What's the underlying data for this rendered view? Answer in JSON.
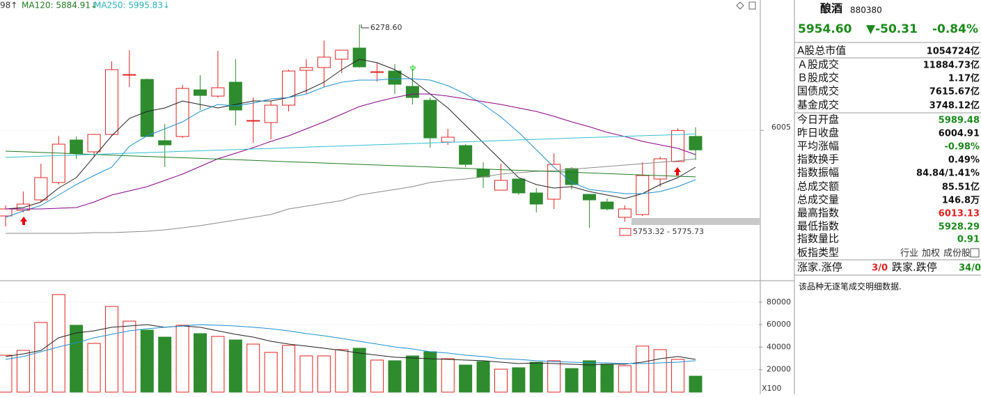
{
  "chart_data": [
    {
      "type": "candlestick",
      "header": [
        "98↑",
        "MA120: 5884.91↓",
        "MA250: 5995.83↓"
      ],
      "up_color": "#e02020",
      "down_color": "#2e8b2e",
      "open": [
        5784,
        5798.4,
        5825.4,
        5870.4,
        5980.2,
        5949.6,
        5994.6,
        6149.4,
        6136.8,
        5978.4,
        5989.2,
        6109.8,
        6093.6,
        6129.6,
        6030.6,
        6025.2,
        6070.2,
        6160.2,
        6167.4,
        6189,
        6217.8,
        6156.6,
        6158.4,
        6118.8,
        6082.8,
        5974.8,
        5965.8,
        5904.6,
        5850.6,
        5879.4,
        5843.4,
        5827.2,
        5906.4,
        5839.8,
        5820,
        5780.4,
        5787.6,
        5879.4,
        5924.4,
        5989.48
      ],
      "high": [
        5811,
        5847,
        5919,
        5991,
        5989.2,
        5994.6,
        6183.6,
        6212.4,
        6138.6,
        6021.6,
        6122.4,
        6147.6,
        6210.6,
        6189,
        6090,
        6081,
        6162,
        6189,
        6237.6,
        6212.4,
        6278.6,
        6180,
        6176.4,
        6162,
        6090,
        6009,
        5969.4,
        5922.6,
        5919,
        5879.4,
        5856,
        5946,
        5910,
        5839.8,
        5829,
        5811,
        5922.6,
        5937,
        6010,
        6013.13
      ],
      "low": [
        5757,
        5793,
        5820,
        5865,
        5931.6,
        5937,
        5991,
        6117,
        5989.2,
        5910,
        5985.6,
        6057.6,
        6090,
        6018,
        5973,
        5982,
        6054,
        6099,
        6117,
        6153,
        6167.4,
        6131.4,
        6099,
        6072,
        5960.4,
        5967.6,
        5910,
        5856,
        5850.6,
        5838,
        5793,
        5802,
        5852.4,
        5753.32,
        5798.4,
        5769.6,
        5784,
        5859.6,
        5924.4,
        5928.29
      ],
      "close": [
        5802,
        5814.6,
        5883,
        5969.4,
        5946,
        5994.6,
        6162,
        6149.4,
        5989.2,
        5967.6,
        6113.4,
        6095.4,
        6115.2,
        6057.6,
        6030.6,
        6070.2,
        6158.4,
        6167.4,
        6194.4,
        6212.4,
        6169.2,
        6156.6,
        6124.2,
        6090,
        5985.6,
        5987.4,
        5917.2,
        5884.8,
        5875.8,
        5843.4,
        5814.6,
        5917.2,
        5865,
        5825.4,
        5802,
        5802,
        5888.4,
        5931.6,
        6004.91,
        5954.6
      ],
      "series": [
        {
          "color": "#222222",
          "values": [
            5802,
            5805.6,
            5820,
            5856,
            5883,
            5937,
            5991,
            6036,
            6054,
            6063,
            6081,
            6072,
            6063,
            6072,
            6081,
            6081,
            6090,
            6108,
            6129.6,
            6162,
            6189,
            6180,
            6162,
            6135,
            6099,
            6063,
            6018,
            5973,
            5928,
            5883,
            5865,
            5856,
            5859.6,
            5847,
            5838,
            5829,
            5841.6,
            5865,
            5883,
            5910
          ]
        },
        {
          "color": "#1e8fd0",
          "values": [
            5780.4,
            5796.6,
            5811,
            5838,
            5865,
            5888.4,
            5910,
            5964,
            5991,
            6009,
            6027,
            6054,
            6072,
            6068.4,
            6075.6,
            6086.4,
            6090,
            6099,
            6117,
            6129.6,
            6135,
            6135,
            6138.6,
            6138.6,
            6135,
            6120.6,
            6099,
            6072,
            6039.6,
            6000,
            5955,
            5910,
            5870.4,
            5852.4,
            5847,
            5841.6,
            5841.6,
            5847,
            5859.6,
            5877.6
          ]
        },
        {
          "color": "#880088",
          "values": [
            5802,
            5802,
            5802,
            5803.8,
            5805.6,
            5820,
            5838,
            5848.8,
            5859.6,
            5875.8,
            5892,
            5911.8,
            5931.6,
            5946,
            5960.4,
            5976.6,
            5991,
            6009,
            6027,
            6046.8,
            6066.6,
            6079.2,
            6090,
            6099,
            6099,
            6093.6,
            6086.4,
            6079.2,
            6072,
            6063,
            6054,
            6041.4,
            6027,
            6014.4,
            6000,
            5989.2,
            5976.6,
            5967.6,
            5958.6,
            5942.4
          ]
        },
        {
          "color": "#8a8a8a",
          "values": [
            5739,
            5739,
            5739,
            5739,
            5739,
            5740.8,
            5740.8,
            5742.6,
            5744.4,
            5748,
            5753.4,
            5758.8,
            5766,
            5773.2,
            5780.4,
            5787.6,
            5802,
            5809.2,
            5816.4,
            5823.6,
            5838,
            5845.2,
            5852.4,
            5859.6,
            5870.4,
            5875.8,
            5879.4,
            5884.8,
            5892,
            5895.6,
            5899.2,
            5901,
            5904.6,
            5908.2,
            5911.8,
            5915.4,
            5919,
            5922.6,
            5926.2,
            5931.6
          ]
        },
        {
          "name": "MA120",
          "color": "#1f7a1f",
          "values": [
            5951.4,
            5949.7,
            5948.0,
            5946.3,
            5944.6,
            5942.9,
            5941.2,
            5939.4,
            5937.7,
            5936.0,
            5934.3,
            5932.6,
            5930.9,
            5929.2,
            5927.5,
            5925.8,
            5924.1,
            5922.4,
            5920.7,
            5919.0,
            5917.2,
            5915.5,
            5913.8,
            5912.1,
            5910.4,
            5908.7,
            5907.0,
            5905.3,
            5903.6,
            5901.9,
            5900.2,
            5898.5,
            5896.7,
            5895.0,
            5893.3,
            5891.6,
            5889.9,
            5888.2,
            5886.5,
            5884.91
          ]
        },
        {
          "name": "MA250",
          "color": "#33bfd0",
          "values": [
            5935.2,
            5936.8,
            5938.3,
            5939.9,
            5941.4,
            5943.0,
            5944.5,
            5946.1,
            5947.6,
            5949.2,
            5950.8,
            5952.3,
            5953.9,
            5955.4,
            5957.0,
            5958.5,
            5960.1,
            5961.6,
            5963.2,
            5964.7,
            5966.3,
            5967.9,
            5969.4,
            5971.0,
            5972.5,
            5974.1,
            5975.6,
            5977.2,
            5978.7,
            5980.3,
            5981.9,
            5983.4,
            5985.0,
            5986.5,
            5988.1,
            5989.6,
            5991.2,
            5992.7,
            5994.3,
            5995.83
          ]
        }
      ],
      "annotations": [
        "6278.60",
        "5753.32 - 5775.73"
      ],
      "ylim": [
        5622,
        6342
      ],
      "yticks": [
        6005
      ],
      "grid": true
    },
    {
      "type": "bar",
      "values": [
        32800,
        37100,
        61900,
        86700,
        59400,
        43300,
        76100,
        63100,
        55100,
        48900,
        59400,
        52000,
        49500,
        46400,
        42700,
        35300,
        41500,
        32200,
        32200,
        37800,
        39000,
        28500,
        27900,
        32200,
        35900,
        29700,
        24100,
        27200,
        20400,
        21700,
        26600,
        27900,
        21000,
        27900,
        24800,
        23500,
        40900,
        37800,
        29100,
        14200
      ],
      "series": [
        {
          "color": "#222222",
          "values": [
            31600,
            34000,
            37100,
            48300,
            52600,
            54500,
            57600,
            58800,
            60000,
            57600,
            58800,
            57600,
            54500,
            51400,
            48900,
            45200,
            42700,
            40900,
            39000,
            37100,
            34700,
            32800,
            31000,
            30300,
            29700,
            29100,
            28500,
            27900,
            26600,
            25400,
            26000,
            25400,
            24800,
            24100,
            24800,
            24800,
            26600,
            29700,
            31600,
            29100
          ]
        },
        {
          "color": "#1e8fd0",
          "values": [
            29100,
            31600,
            35900,
            40200,
            43900,
            48300,
            51400,
            54500,
            56300,
            57600,
            58800,
            60000,
            59400,
            58800,
            57600,
            56300,
            54500,
            52000,
            50100,
            47700,
            45200,
            42700,
            40200,
            38400,
            35900,
            34700,
            32800,
            31600,
            29700,
            29100,
            27900,
            27200,
            26600,
            26000,
            26000,
            25400,
            25400,
            26000,
            26600,
            27900
          ]
        }
      ],
      "unit_label": "X100",
      "ylim": [
        0,
        97800
      ],
      "yticks": [
        20000,
        40000,
        60000,
        80000
      ],
      "grid": true
    }
  ],
  "panel": {
    "name": "酿酒",
    "code": "880380",
    "price": "5954.60",
    "change": "▼-50.31",
    "change_pct": "-0.84%",
    "rows": [
      {
        "label": "A股总市值",
        "value": "1054724亿",
        "color": "#111111"
      },
      {
        "label": "Ａ股成交",
        "value": "11884.73亿",
        "color": "#111111"
      },
      {
        "label": "Ｂ股成交",
        "value": "1.17亿",
        "color": "#111111"
      },
      {
        "label": "国债成交",
        "value": "7615.67亿",
        "color": "#111111"
      },
      {
        "label": "基金成交",
        "value": "3748.12亿",
        "color": "#111111"
      },
      {
        "label": "今日开盘",
        "value": "5989.48",
        "color": "#1a8a1a"
      },
      {
        "label": "昨日收盘",
        "value": "6004.91",
        "color": "#111111"
      },
      {
        "label": "平均涨幅",
        "value": "-0.98%",
        "color": "#1a8a1a"
      },
      {
        "label": "指数换手",
        "value": "0.49%",
        "color": "#111111"
      },
      {
        "label": "指数振幅",
        "value": "84.84/1.41%",
        "color": "#111111"
      },
      {
        "label": "总成交额",
        "value": "85.51亿",
        "color": "#111111"
      },
      {
        "label": "总成交量",
        "value": "146.8万",
        "color": "#111111"
      },
      {
        "label": "最高指数",
        "value": "6013.13",
        "color": "#e02020"
      },
      {
        "label": "最低指数",
        "value": "5928.29",
        "color": "#1a8a1a"
      },
      {
        "label": "指数量比",
        "value": "0.91",
        "color": "#1a8a1a"
      }
    ],
    "type_label": "板指类型",
    "type_options": [
      "行业",
      "加权",
      "成份股"
    ],
    "up_label": "涨家.涨停",
    "up_value": "3/0",
    "down_label": "跌家.跌停",
    "down_value": "34/0",
    "message": "该品种无逐笔成交明细数据."
  }
}
